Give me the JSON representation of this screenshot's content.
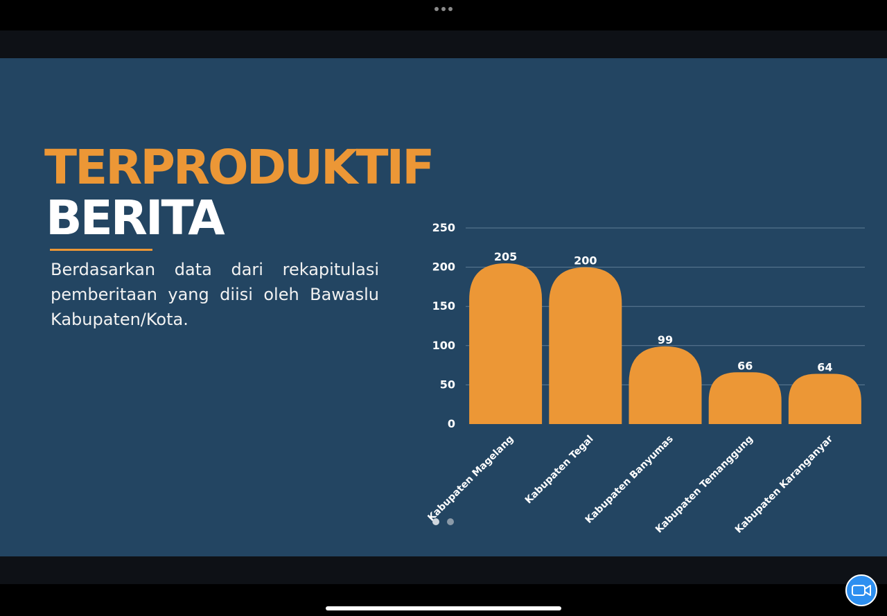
{
  "title_line1": "TERPRODUKTIF",
  "title_line2": "BERITA",
  "description": "Berdasarkan data dari rekapitulasi pemberitaan yang diisi oleh Bawaslu Kabupaten/Kota.",
  "colors": {
    "slide_background": "#234562",
    "accent_orange": "#ec9736",
    "text_white": "#ffffff",
    "gridline": "#5f7d96",
    "video_button": "#2d8ff0"
  },
  "icons": {
    "top_menu": "more-dots-icon",
    "camera": "video-camera-icon"
  },
  "pagination": {
    "current": 1,
    "total": 2
  },
  "chart_data": {
    "type": "bar",
    "categories": [
      "Kabupaten Magelang",
      "Kabupaten Tegal",
      "Kabupaten Banyumas",
      "Kabupaten Temanggung",
      "Kabupaten Karanganyar"
    ],
    "values": [
      205,
      200,
      99,
      66,
      64
    ],
    "ylim": [
      0,
      250
    ],
    "yticks": [
      "0",
      "50",
      "100",
      "150",
      "200",
      "250"
    ],
    "grid": true,
    "data_labels": true,
    "bar_color": "#ec9736"
  }
}
